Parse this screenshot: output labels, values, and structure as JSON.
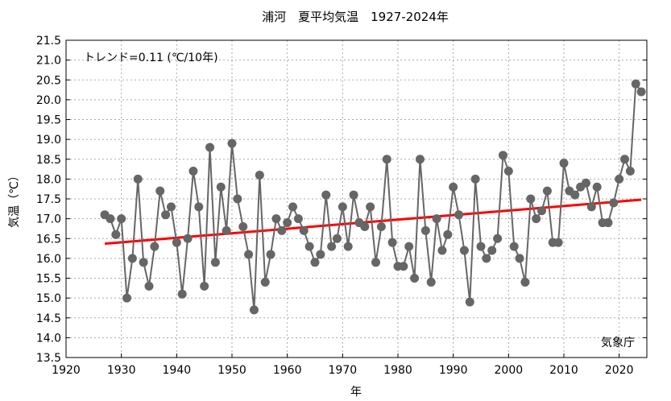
{
  "chart_data": {
    "type": "line",
    "title": "浦河　夏平均気温　1927-2024年",
    "xlabel": "年",
    "ylabel": "気温（℃）",
    "xlim": [
      1920,
      2025
    ],
    "ylim": [
      13.5,
      21.5
    ],
    "xticks": [
      1920,
      1930,
      1940,
      1950,
      1960,
      1970,
      1980,
      1990,
      2000,
      2010,
      2020
    ],
    "yticks": [
      13.5,
      14.0,
      14.5,
      15.0,
      15.5,
      16.0,
      16.5,
      17.0,
      17.5,
      18.0,
      18.5,
      19.0,
      19.5,
      20.0,
      20.5,
      21.0,
      21.5
    ],
    "grid": true,
    "trend_label": "トレンド=0.11 (℃/10年)",
    "source_label": "気象庁",
    "trend": {
      "x": [
        1927,
        2024
      ],
      "y": [
        16.37,
        17.48
      ],
      "color": "#ff0000"
    },
    "series_color": "#666666",
    "x_start": 1927,
    "values": [
      17.1,
      17.0,
      16.6,
      17.0,
      15.0,
      16.0,
      18.0,
      15.9,
      15.3,
      16.3,
      17.7,
      17.1,
      17.3,
      16.4,
      15.1,
      16.5,
      18.2,
      17.3,
      15.3,
      18.8,
      15.9,
      17.8,
      16.7,
      18.9,
      17.5,
      16.8,
      16.1,
      14.7,
      18.1,
      15.4,
      16.1,
      17.0,
      16.7,
      16.9,
      17.3,
      17.0,
      16.7,
      16.3,
      15.9,
      16.1,
      17.6,
      16.3,
      16.5,
      17.3,
      16.3,
      17.6,
      16.9,
      16.8,
      17.3,
      15.9,
      16.8,
      18.5,
      16.4,
      15.8,
      15.8,
      16.3,
      15.5,
      18.5,
      16.7,
      15.4,
      17.0,
      16.2,
      16.6,
      17.8,
      17.1,
      16.2,
      14.9,
      18.0,
      16.3,
      16.0,
      16.2,
      16.5,
      18.6,
      18.2,
      16.3,
      16.0,
      15.4,
      17.5,
      17.0,
      17.2,
      17.7,
      16.4,
      16.4,
      18.4,
      17.7,
      17.6,
      17.8,
      17.9,
      17.3,
      17.8,
      16.9,
      16.9,
      17.4,
      18.0,
      18.5,
      18.2,
      20.4,
      20.2
    ]
  }
}
